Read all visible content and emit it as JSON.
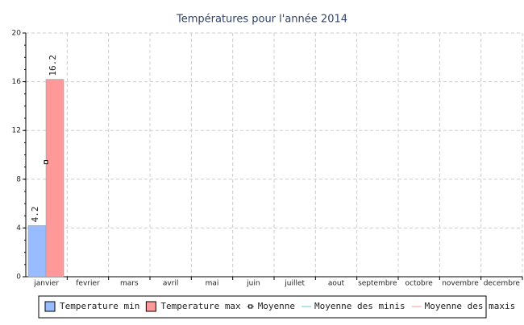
{
  "chart_data": {
    "type": "bar",
    "title": "Températures pour l'année 2014",
    "categories": [
      "janvier",
      "fevrier",
      "mars",
      "avril",
      "mai",
      "juin",
      "juillet",
      "aout",
      "septembre",
      "octobre",
      "novembre",
      "decembre"
    ],
    "series": [
      {
        "name": "Temperature min",
        "color": "#99bbff",
        "type": "bar",
        "values": [
          4.2,
          null,
          null,
          null,
          null,
          null,
          null,
          null,
          null,
          null,
          null,
          null
        ]
      },
      {
        "name": "Temperature max",
        "color": "#ff9999",
        "type": "bar",
        "values": [
          16.2,
          null,
          null,
          null,
          null,
          null,
          null,
          null,
          null,
          null,
          null,
          null
        ]
      },
      {
        "name": "Moyenne",
        "color": "#000000",
        "type": "point",
        "values": [
          9.4,
          null,
          null,
          null,
          null,
          null,
          null,
          null,
          null,
          null,
          null,
          null
        ]
      },
      {
        "name": "Moyenne des minis",
        "color": "#66cccc",
        "type": "line",
        "values": [
          null,
          null,
          null,
          null,
          null,
          null,
          null,
          null,
          null,
          null,
          null,
          null
        ]
      },
      {
        "name": "Moyenne des maxis",
        "color": "#ff9999",
        "type": "line",
        "values": [
          null,
          null,
          null,
          null,
          null,
          null,
          null,
          null,
          null,
          null,
          null,
          null
        ]
      }
    ],
    "ylim": [
      0,
      20
    ],
    "yticks": [
      0,
      4,
      8,
      12,
      16,
      20
    ],
    "grid": true
  }
}
